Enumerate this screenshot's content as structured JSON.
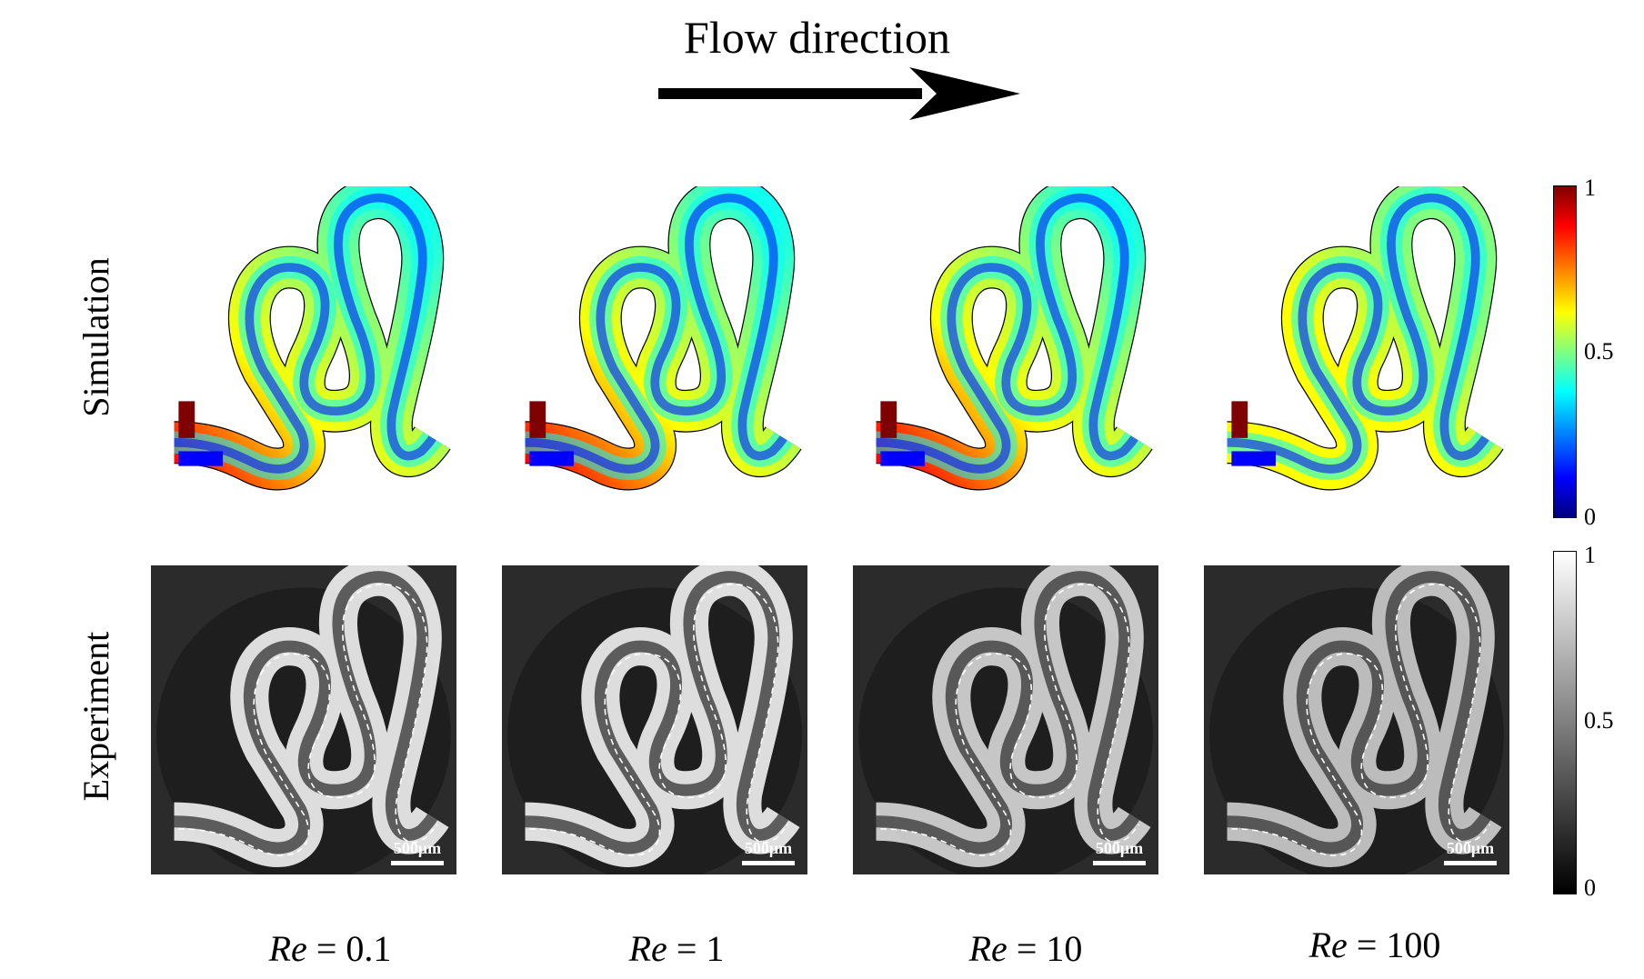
{
  "flow_arrow": {
    "label": "Flow direction"
  },
  "rows": [
    {
      "label": "Simulation",
      "colorbar": {
        "ticks": [
          "1",
          "0.5",
          "0"
        ],
        "colormap": "jet"
      }
    },
    {
      "label": "Experiment",
      "colorbar": {
        "ticks": [
          "1",
          "0.5",
          "0"
        ],
        "colormap": "grayscale"
      }
    }
  ],
  "columns": [
    {
      "re_symbol": "Re",
      "re_equals": "= 0.1"
    },
    {
      "re_symbol": "Re",
      "re_equals": "= 1"
    },
    {
      "re_symbol": "Re",
      "re_equals": "= 10"
    },
    {
      "re_symbol": "Re",
      "re_equals": "= 100"
    }
  ],
  "scale_bar": {
    "label": "500μm"
  },
  "colors": {
    "jet": [
      "#00007f",
      "#0000ff",
      "#00ffff",
      "#80ff80",
      "#ffff00",
      "#ff0000",
      "#7f0000"
    ],
    "experiment_background": "#2b2b2b"
  }
}
